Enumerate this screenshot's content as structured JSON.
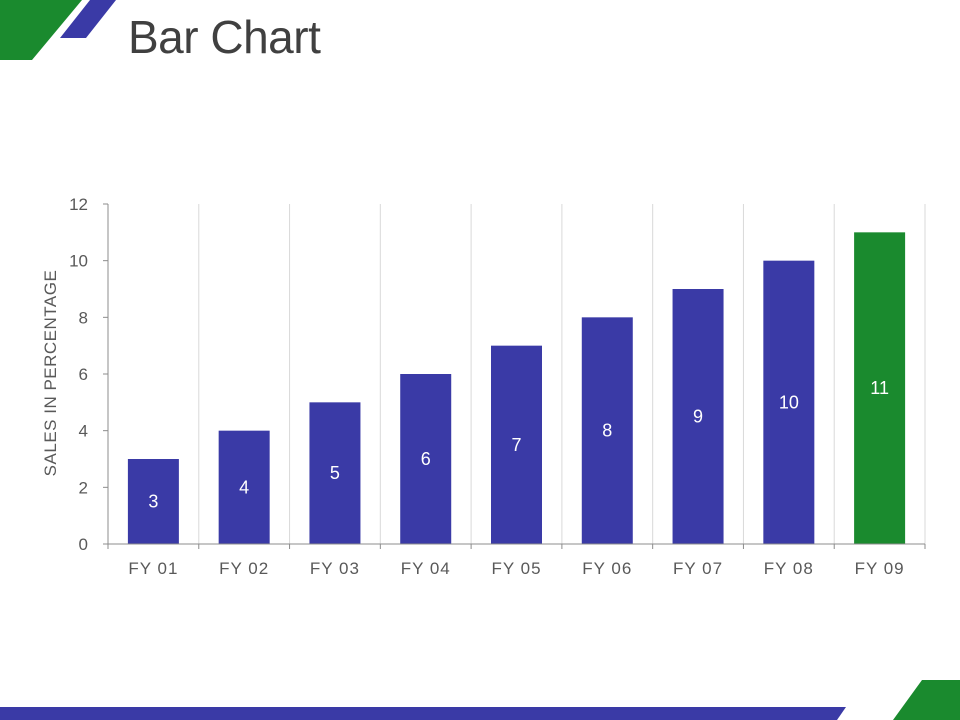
{
  "slide": {
    "title": "Bar Chart"
  },
  "colors": {
    "blue": "#3a3aa6",
    "green": "#1a8a2e",
    "gridline": "#d9d9d9",
    "axis": "#8c8c8c"
  },
  "chart_data": {
    "type": "bar",
    "categories": [
      "FY 01",
      "FY 02",
      "FY 03",
      "FY 04",
      "FY 05",
      "FY 06",
      "FY 07",
      "FY 08",
      "FY 09"
    ],
    "values": [
      3,
      4,
      5,
      6,
      7,
      8,
      9,
      10,
      11
    ],
    "data_labels": [
      "3",
      "4",
      "5",
      "6",
      "7",
      "8",
      "9",
      "10",
      "11"
    ],
    "bar_colors": [
      "#3a3aa6",
      "#3a3aa6",
      "#3a3aa6",
      "#3a3aa6",
      "#3a3aa6",
      "#3a3aa6",
      "#3a3aa6",
      "#3a3aa6",
      "#1a8a2e"
    ],
    "ylabel": "SALES IN PERCENTAGE",
    "xlabel": "",
    "ylim": [
      0,
      12
    ],
    "yticks": [
      0,
      2,
      4,
      6,
      8,
      10,
      12
    ],
    "grid": "vertical",
    "legend": "none"
  }
}
